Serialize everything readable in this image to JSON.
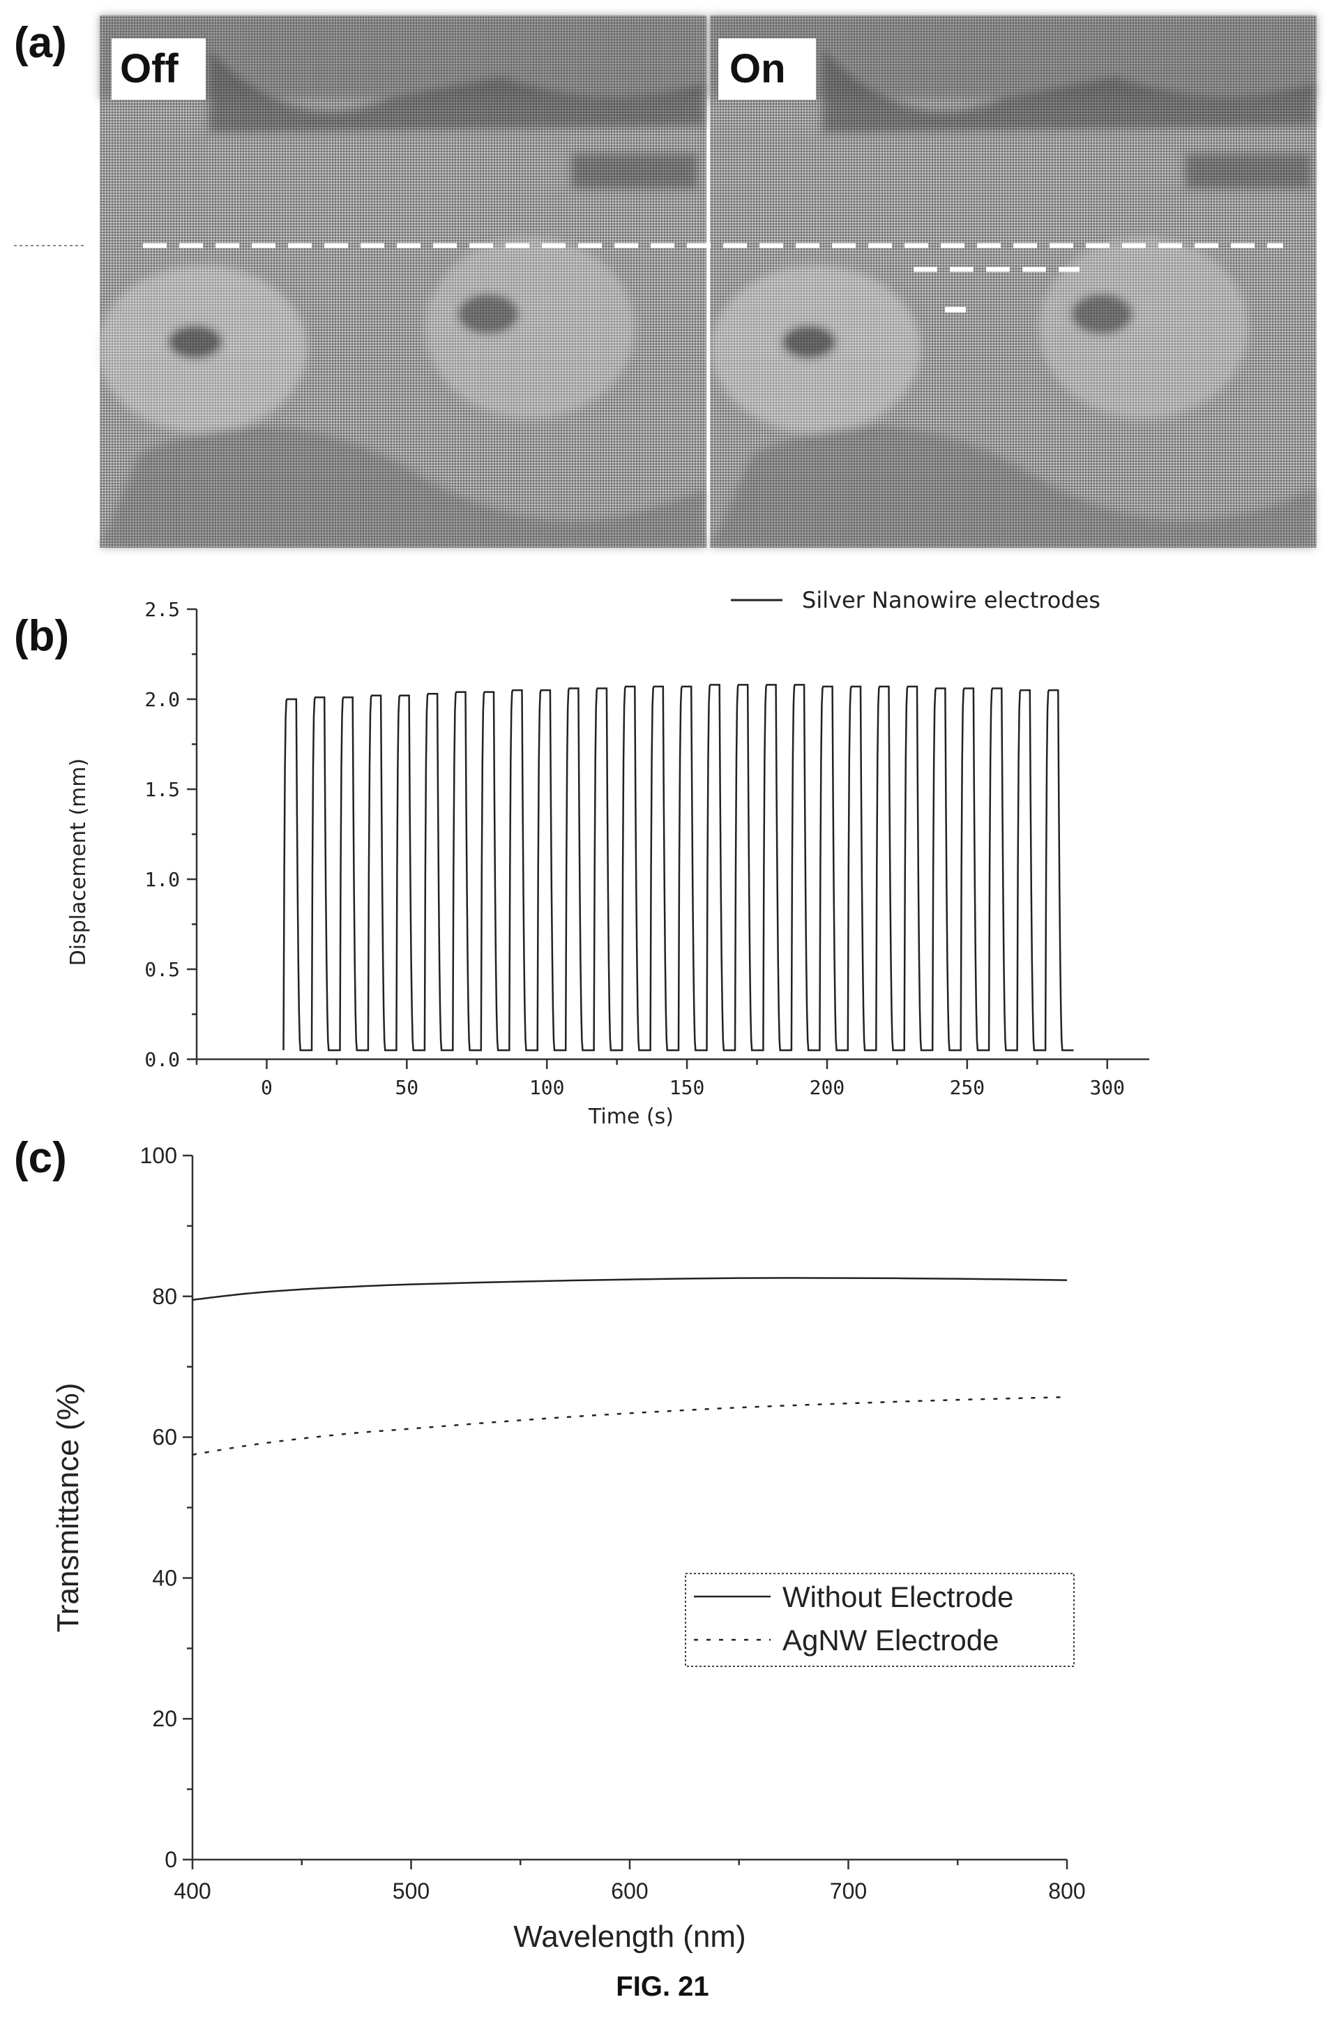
{
  "panels": {
    "a": {
      "letter": "(a)",
      "left_label": "Off",
      "right_label": "On"
    },
    "b": {
      "letter": "(b)"
    },
    "c": {
      "letter": "(c)"
    }
  },
  "caption": "FIG. 21",
  "colors": {
    "ink": "#111111",
    "photo_dark": "#3c3c3c",
    "photo_mid": "#8a8a8a",
    "photo_light": "#d0d0d0",
    "dashed_marker": "#ffffff"
  },
  "chart_data": [
    {
      "panel": "b",
      "type": "line",
      "xlabel": "Time (s)",
      "ylabel": "Displacement (mm)",
      "xlim": [
        -25,
        315
      ],
      "ylim": [
        0,
        2.5
      ],
      "xticks": [
        0,
        50,
        100,
        150,
        200,
        250,
        300
      ],
      "yticks": [
        0.0,
        0.5,
        1.0,
        1.5,
        2.0,
        2.5
      ],
      "xtick_labels": [
        "0",
        "50",
        "100",
        "150",
        "200",
        "250",
        "300"
      ],
      "ytick_labels": [
        "0.0",
        "0.5",
        "1.0",
        "1.5",
        "2.0",
        "2.5"
      ],
      "legend_position": "top-right",
      "grid": false,
      "series": [
        {
          "name": "Silver Nanowire electrodes",
          "style": "solid",
          "cycle_start_s": 6,
          "cycle_end_s": 288,
          "cycles": 28,
          "min_mm": 0.05,
          "peak_mm": [
            2.0,
            2.01,
            2.01,
            2.02,
            2.02,
            2.03,
            2.04,
            2.04,
            2.05,
            2.05,
            2.06,
            2.06,
            2.07,
            2.07,
            2.07,
            2.08,
            2.08,
            2.08,
            2.08,
            2.07,
            2.07,
            2.07,
            2.07,
            2.06,
            2.06,
            2.06,
            2.05,
            2.05
          ]
        }
      ]
    },
    {
      "panel": "c",
      "type": "line",
      "xlabel": "Wavelength (nm)",
      "ylabel": "Transmittance (%)",
      "xlim": [
        400,
        800
      ],
      "ylim": [
        0,
        100
      ],
      "xticks": [
        400,
        500,
        600,
        700,
        800
      ],
      "yticks": [
        0,
        20,
        40,
        60,
        80,
        100
      ],
      "xtick_labels": [
        "400",
        "500",
        "600",
        "700",
        "800"
      ],
      "ytick_labels": [
        "0",
        "20",
        "40",
        "60",
        "80",
        "100"
      ],
      "legend_position": "center-right",
      "grid": false,
      "x": [
        400,
        425,
        450,
        475,
        500,
        550,
        600,
        650,
        700,
        750,
        800
      ],
      "series": [
        {
          "name": "Without Electrode",
          "style": "solid",
          "values": [
            79.5,
            80.4,
            81.0,
            81.4,
            81.7,
            82.1,
            82.4,
            82.6,
            82.6,
            82.5,
            82.3
          ]
        },
        {
          "name": "AgNW Electrode",
          "style": "dashed",
          "values": [
            57.5,
            58.8,
            59.8,
            60.6,
            61.2,
            62.4,
            63.4,
            64.2,
            64.8,
            65.3,
            65.7
          ]
        }
      ]
    }
  ]
}
